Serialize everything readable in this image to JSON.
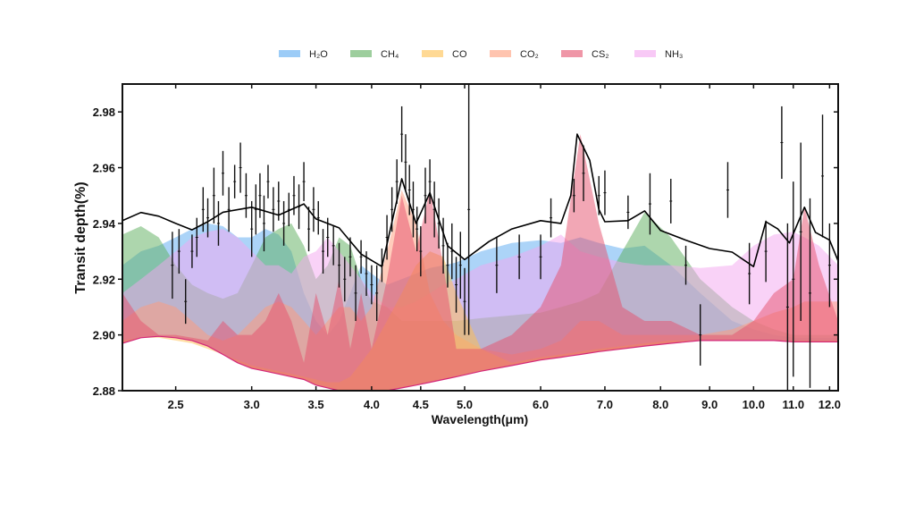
{
  "chart_data": {
    "type": "area",
    "xlabel": "Wavelength(μm)",
    "ylabel": "Transit depth(%)",
    "xscale": "log",
    "xlim": [
      2.2,
      12.25
    ],
    "ylim": [
      2.88,
      2.99
    ],
    "xticks": [
      2.5,
      3.0,
      3.5,
      4.0,
      4.5,
      5.0,
      6.0,
      7.0,
      8.0,
      9.0,
      10.0,
      11.0,
      12.0
    ],
    "xtick_labels": [
      "2.5",
      "3.0",
      "3.5",
      "4.0",
      "4.5",
      "5.0",
      "6.0",
      "7.0",
      "8.0",
      "9.0",
      "10.0",
      "11.0",
      "12.0"
    ],
    "yticks": [
      2.88,
      2.9,
      2.92,
      2.94,
      2.96,
      2.98
    ],
    "ytick_labels": [
      "2.88",
      "2.90",
      "2.92",
      "2.94",
      "2.96",
      "2.98"
    ],
    "grid": false,
    "legend_placement": "top-center",
    "wavelength_grid": [
      2.2,
      2.3,
      2.4,
      2.5,
      2.6,
      2.7,
      2.8,
      2.9,
      3.0,
      3.1,
      3.2,
      3.3,
      3.4,
      3.5,
      3.6,
      3.7,
      3.8,
      3.9,
      4.0,
      4.15,
      4.3,
      4.45,
      4.6,
      4.75,
      4.9,
      5.2,
      5.6,
      6.0,
      6.3,
      6.6,
      6.9,
      7.3,
      7.7,
      8.2,
      8.8,
      9.5,
      10.0,
      10.5,
      11.0,
      11.3,
      11.7,
      12.25
    ],
    "baseline": [
      2.897,
      2.899,
      2.8995,
      2.899,
      2.898,
      2.896,
      2.893,
      2.89,
      2.888,
      2.887,
      2.886,
      2.885,
      2.884,
      2.882,
      2.881,
      2.88,
      2.879,
      2.879,
      2.879,
      2.88,
      2.881,
      2.882,
      2.883,
      2.884,
      2.885,
      2.887,
      2.889,
      2.891,
      2.892,
      2.893,
      2.894,
      2.895,
      2.896,
      2.897,
      2.898,
      2.898,
      2.898,
      2.898,
      2.8975,
      2.8975,
      2.8975,
      2.8975
    ],
    "series": [
      {
        "name": "H₂O",
        "color": "#5aaaf2",
        "values": [
          2.925,
          2.93,
          2.932,
          2.935,
          2.938,
          2.94,
          2.939,
          2.935,
          2.935,
          2.938,
          2.936,
          2.93,
          2.915,
          2.905,
          2.9,
          2.905,
          2.915,
          2.925,
          2.922,
          2.918,
          2.92,
          2.922,
          2.924,
          2.925,
          2.926,
          2.93,
          2.933,
          2.934,
          2.933,
          2.935,
          2.933,
          2.931,
          2.932,
          2.925,
          2.915,
          2.905,
          2.902,
          2.9,
          2.899,
          2.899,
          2.899,
          2.899
        ]
      },
      {
        "name": "CH₄",
        "color": "#5cae5c",
        "values": [
          2.936,
          2.939,
          2.935,
          2.925,
          2.918,
          2.915,
          2.913,
          2.915,
          2.925,
          2.935,
          2.938,
          2.94,
          2.932,
          2.92,
          2.925,
          2.935,
          2.932,
          2.92,
          2.912,
          2.91,
          2.905,
          2.905,
          2.905,
          2.905,
          2.905,
          2.906,
          2.907,
          2.908,
          2.91,
          2.912,
          2.915,
          2.93,
          2.944,
          2.935,
          2.92,
          2.91,
          2.905,
          2.902,
          2.9,
          2.9,
          2.9,
          2.9
        ]
      },
      {
        "name": "CO",
        "color": "#ffbf4d",
        "values": [
          2.898,
          2.899,
          2.899,
          2.898,
          2.897,
          2.895,
          2.893,
          2.891,
          2.889,
          2.888,
          2.887,
          2.886,
          2.885,
          2.884,
          2.883,
          2.883,
          2.885,
          2.89,
          2.895,
          2.905,
          2.915,
          2.925,
          2.93,
          2.928,
          2.915,
          2.895,
          2.89,
          2.892,
          2.893,
          2.894,
          2.895,
          2.896,
          2.897,
          2.898,
          2.898,
          2.898,
          2.898,
          2.898,
          2.898,
          2.898,
          2.898,
          2.898
        ]
      },
      {
        "name": "CO₂",
        "color": "#ff9c7a",
        "values": [
          2.905,
          2.91,
          2.912,
          2.91,
          2.905,
          2.9,
          2.898,
          2.9,
          2.905,
          2.91,
          2.912,
          2.91,
          2.905,
          2.9,
          2.905,
          2.91,
          2.91,
          2.905,
          2.91,
          2.93,
          2.952,
          2.94,
          2.915,
          2.905,
          2.9,
          2.895,
          2.893,
          2.895,
          2.898,
          2.905,
          2.905,
          2.9,
          2.9,
          2.9,
          2.9,
          2.902,
          2.905,
          2.908,
          2.91,
          2.912,
          2.912,
          2.912
        ]
      },
      {
        "name": "CS₂",
        "color": "#e5506c",
        "values": [
          2.915,
          2.905,
          2.9,
          2.9,
          2.899,
          2.898,
          2.905,
          2.9,
          2.9,
          2.905,
          2.915,
          2.905,
          2.89,
          2.915,
          2.9,
          2.92,
          2.895,
          2.915,
          2.895,
          2.92,
          2.95,
          2.93,
          2.952,
          2.925,
          2.895,
          2.895,
          2.9,
          2.91,
          2.925,
          2.972,
          2.94,
          2.91,
          2.905,
          2.905,
          2.9,
          2.9,
          2.905,
          2.915,
          2.92,
          2.946,
          2.925,
          2.905
        ]
      },
      {
        "name": "NH₃",
        "color": "#f3a5f0",
        "values": [
          2.915,
          2.92,
          2.925,
          2.93,
          2.935,
          2.937,
          2.938,
          2.935,
          2.93,
          2.925,
          2.925,
          2.922,
          2.928,
          2.93,
          2.935,
          2.93,
          2.925,
          2.92,
          2.915,
          2.91,
          2.91,
          2.912,
          2.915,
          2.918,
          2.92,
          2.925,
          2.928,
          2.932,
          2.936,
          2.93,
          2.928,
          2.926,
          2.925,
          2.925,
          2.924,
          2.925,
          2.932,
          2.936,
          2.937,
          2.935,
          2.932,
          2.925
        ]
      }
    ],
    "model": {
      "color": "#000000",
      "x": [
        2.2,
        2.3,
        2.4,
        2.5,
        2.6,
        2.7,
        2.8,
        3.0,
        3.2,
        3.4,
        3.5,
        3.7,
        3.9,
        4.1,
        4.3,
        4.45,
        4.6,
        4.8,
        5.0,
        5.3,
        5.6,
        6.0,
        6.3,
        6.45,
        6.55,
        6.75,
        6.9,
        7.0,
        7.4,
        7.7,
        8.0,
        8.5,
        9.0,
        9.5,
        10.0,
        10.3,
        10.6,
        10.9,
        11.3,
        11.6,
        12.0,
        12.25
      ],
      "y": [
        2.941,
        2.9439,
        2.9426,
        2.94,
        2.9377,
        2.9406,
        2.944,
        2.9458,
        2.943,
        2.947,
        2.9416,
        2.9384,
        2.929,
        2.9245,
        2.956,
        2.94,
        2.951,
        2.932,
        2.927,
        2.9335,
        2.938,
        2.941,
        2.94,
        2.95,
        2.972,
        2.9626,
        2.945,
        2.9406,
        2.941,
        2.9445,
        2.9375,
        2.934,
        2.931,
        2.9297,
        2.9245,
        2.9406,
        2.938,
        2.933,
        2.9458,
        2.9368,
        2.934,
        2.9265
      ]
    },
    "observations": {
      "color": "#111111",
      "points": [
        [
          2.48,
          2.925,
          0.012
        ],
        [
          2.52,
          2.93,
          0.008
        ],
        [
          2.56,
          2.912,
          0.008
        ],
        [
          2.6,
          2.93,
          0.006
        ],
        [
          2.63,
          2.935,
          0.007
        ],
        [
          2.67,
          2.945,
          0.008
        ],
        [
          2.7,
          2.942,
          0.007
        ],
        [
          2.74,
          2.95,
          0.01
        ],
        [
          2.77,
          2.94,
          0.008
        ],
        [
          2.8,
          2.958,
          0.008
        ],
        [
          2.84,
          2.945,
          0.008
        ],
        [
          2.88,
          2.955,
          0.006
        ],
        [
          2.92,
          2.96,
          0.009
        ],
        [
          2.96,
          2.95,
          0.008
        ],
        [
          3.0,
          2.938,
          0.01
        ],
        [
          3.03,
          2.945,
          0.009
        ],
        [
          3.06,
          2.95,
          0.008
        ],
        [
          3.09,
          2.94,
          0.01
        ],
        [
          3.12,
          2.955,
          0.006
        ],
        [
          3.16,
          2.945,
          0.008
        ],
        [
          3.2,
          2.948,
          0.007
        ],
        [
          3.24,
          2.94,
          0.008
        ],
        [
          3.28,
          2.945,
          0.006
        ],
        [
          3.32,
          2.95,
          0.007
        ],
        [
          3.36,
          2.946,
          0.008
        ],
        [
          3.4,
          2.955,
          0.007
        ],
        [
          3.44,
          2.938,
          0.008
        ],
        [
          3.48,
          2.945,
          0.008
        ],
        [
          3.52,
          2.942,
          0.006
        ],
        [
          3.56,
          2.93,
          0.008
        ],
        [
          3.6,
          2.935,
          0.007
        ],
        [
          3.65,
          2.932,
          0.007
        ],
        [
          3.7,
          2.925,
          0.008
        ],
        [
          3.75,
          2.92,
          0.008
        ],
        [
          3.8,
          2.928,
          0.007
        ],
        [
          3.85,
          2.915,
          0.01
        ],
        [
          3.9,
          2.928,
          0.006
        ],
        [
          3.95,
          2.922,
          0.008
        ],
        [
          4.0,
          2.918,
          0.007
        ],
        [
          4.05,
          2.915,
          0.01
        ],
        [
          4.1,
          2.925,
          0.006
        ],
        [
          4.15,
          2.935,
          0.008
        ],
        [
          4.2,
          2.945,
          0.008
        ],
        [
          4.25,
          2.955,
          0.008
        ],
        [
          4.3,
          2.972,
          0.01
        ],
        [
          4.34,
          2.962,
          0.01
        ],
        [
          4.38,
          2.952,
          0.009
        ],
        [
          4.42,
          2.945,
          0.01
        ],
        [
          4.46,
          2.938,
          0.008
        ],
        [
          4.5,
          2.93,
          0.009
        ],
        [
          4.55,
          2.95,
          0.01
        ],
        [
          4.6,
          2.955,
          0.008
        ],
        [
          4.65,
          2.945,
          0.01
        ],
        [
          4.7,
          2.94,
          0.009
        ],
        [
          4.75,
          2.932,
          0.01
        ],
        [
          4.8,
          2.925,
          0.008
        ],
        [
          4.85,
          2.93,
          0.01
        ],
        [
          4.9,
          2.918,
          0.01
        ],
        [
          4.95,
          2.925,
          0.012
        ],
        [
          5.0,
          2.912,
          0.012
        ],
        [
          5.05,
          2.945,
          0.045
        ],
        [
          5.4,
          2.925,
          0.01
        ],
        [
          5.7,
          2.928,
          0.008
        ],
        [
          6.0,
          2.928,
          0.008
        ],
        [
          6.15,
          2.942,
          0.007
        ],
        [
          6.5,
          2.95,
          0.006
        ],
        [
          6.65,
          2.958,
          0.01
        ],
        [
          6.9,
          2.95,
          0.007
        ],
        [
          7.0,
          2.951,
          0.008
        ],
        [
          7.4,
          2.944,
          0.006
        ],
        [
          7.8,
          2.947,
          0.011
        ],
        [
          8.2,
          2.948,
          0.008
        ],
        [
          8.5,
          2.925,
          0.007
        ],
        [
          8.8,
          2.9,
          0.011
        ],
        [
          9.4,
          2.952,
          0.01
        ],
        [
          9.9,
          2.922,
          0.011
        ],
        [
          10.3,
          2.93,
          0.011
        ],
        [
          10.7,
          2.969,
          0.013
        ],
        [
          10.85,
          2.91,
          0.03
        ],
        [
          11.0,
          2.92,
          0.035
        ],
        [
          11.2,
          2.937,
          0.032
        ],
        [
          11.45,
          2.915,
          0.034
        ],
        [
          11.8,
          2.957,
          0.022
        ],
        [
          12.0,
          2.925,
          0.015
        ]
      ]
    }
  }
}
